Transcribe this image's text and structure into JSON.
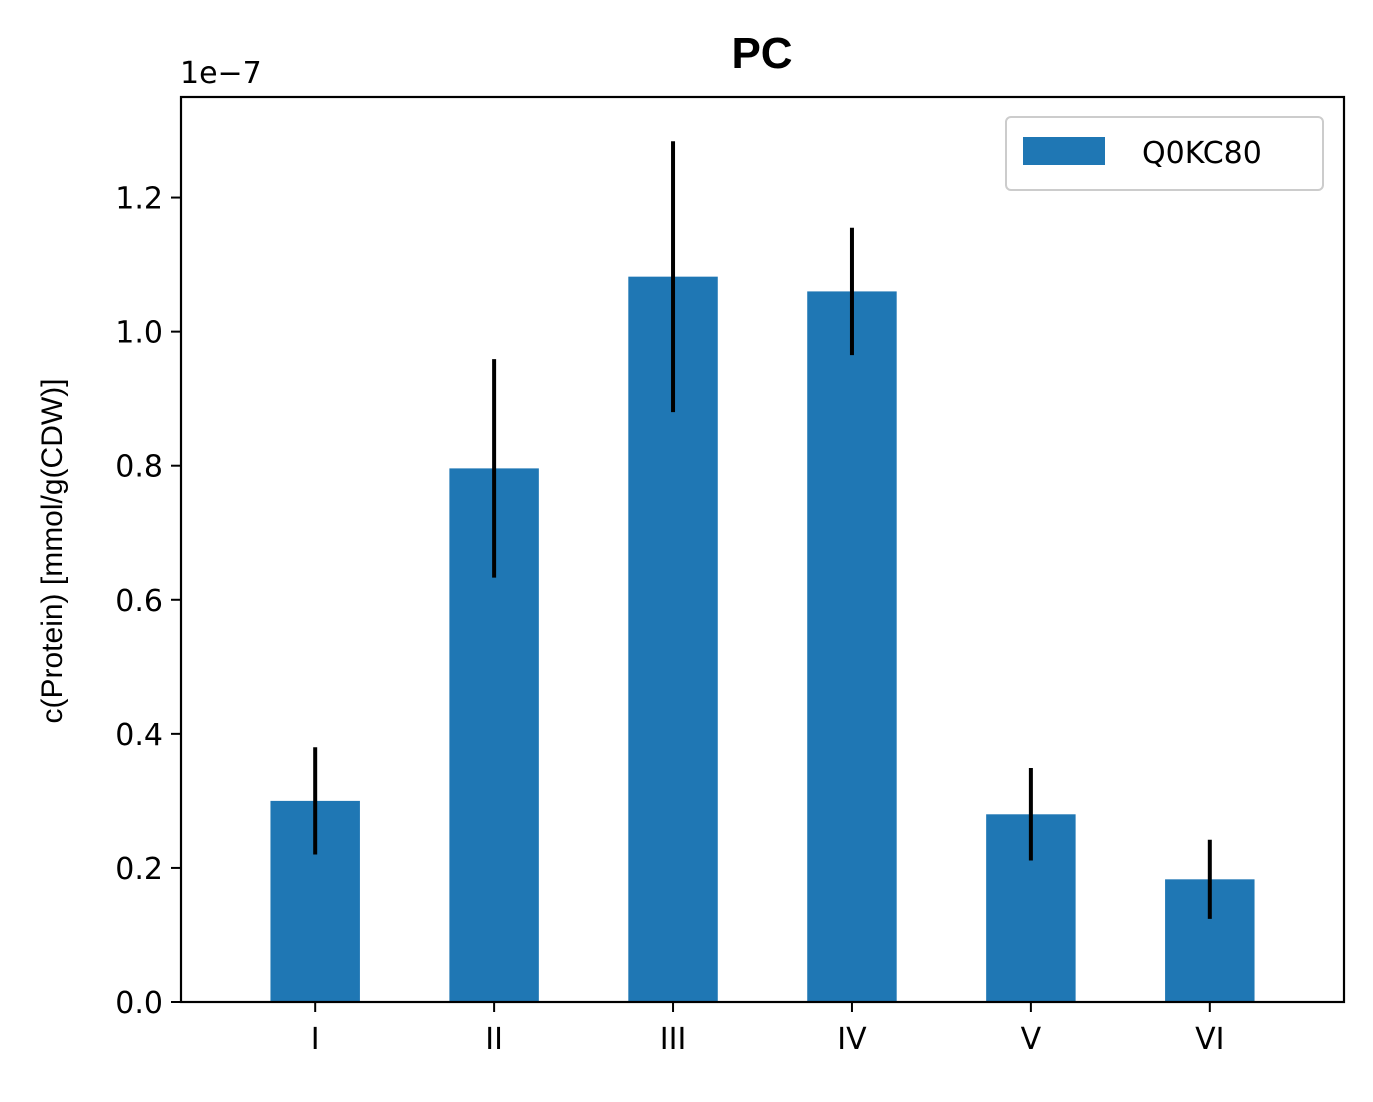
{
  "chart_data": {
    "type": "bar",
    "title": "PC",
    "xlabel": "",
    "ylabel": "c(Protein) [mmol/g(CDW)]",
    "scale_label": "1e−7",
    "categories": [
      "I",
      "II",
      "III",
      "IV",
      "V",
      "VI"
    ],
    "series": [
      {
        "name": "Q0KC80",
        "color": "#1f77b4",
        "values": [
          0.3,
          0.796,
          1.082,
          1.06,
          0.28,
          0.183
        ],
        "errors": [
          0.08,
          0.163,
          0.202,
          0.095,
          0.069,
          0.059
        ]
      }
    ],
    "ylim": [
      0,
      1.35
    ],
    "yticks": [
      0.0,
      0.2,
      0.4,
      0.6,
      0.8,
      1.0,
      1.2
    ],
    "ytick_labels": [
      "0.0",
      "0.2",
      "0.4",
      "0.6",
      "0.8",
      "1.0",
      "1.2"
    ],
    "grid": false,
    "legend_position": "top-right"
  }
}
